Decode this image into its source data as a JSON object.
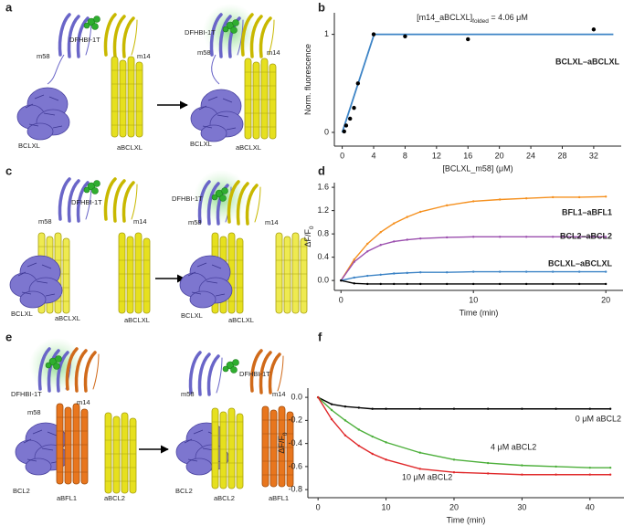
{
  "panels": [
    "a",
    "b",
    "c",
    "d",
    "e",
    "f"
  ],
  "diagrams": [
    {
      "labels": [
        "m58",
        "DFHBI-1T",
        "m14",
        "BCLXL",
        "aBCLXL",
        "DFHBI-1T",
        "m58",
        "m14",
        "BCLXL",
        "aBCLXL"
      ]
    },
    {
      "labels": [
        "m58",
        "DFHBI-1T",
        "m14",
        "BCLXL",
        "aBCLXL",
        "aBCLXL",
        "DFHBI-1T",
        "m58",
        "m14",
        "BCLXL",
        "aBCLXL"
      ]
    },
    {
      "labels": [
        "DFHBI-1T",
        "m58",
        "m14",
        "BCL2",
        "aBFL1",
        "aBCL2",
        "m58",
        "DFHBI-1T",
        "m14",
        "BCL2",
        "aBCL2",
        "aBFL1"
      ]
    }
  ],
  "chart_data": [
    {
      "type": "line",
      "annotation": {
        "text": "[m14_aBCLXL]",
        "sub": "folded",
        "rest": " = 4.06 μM"
      },
      "xlabel": "[BCLXL_m58] (μM)",
      "ylabel": "Norm. fluorescence",
      "xlim": [
        -1,
        35.5
      ],
      "ylim": [
        -0.14,
        1.22
      ],
      "xticks": [
        0,
        4,
        8,
        12,
        16,
        20,
        24,
        28,
        32
      ],
      "yticks": [
        0,
        1
      ],
      "series": [
        {
          "name": "BCLXL–aBCLXL",
          "color": "#3d84c6",
          "mode": "line",
          "x": [
            0,
            4.06,
            34.5
          ],
          "values": [
            0,
            1,
            1
          ]
        },
        {
          "color": "#000000",
          "mode": "markers",
          "x": [
            0.25,
            0.5,
            1,
            1.5,
            2,
            4,
            8,
            16,
            32
          ],
          "values": [
            0.01,
            0.07,
            0.14,
            0.25,
            0.5,
            1.0,
            0.98,
            0.95,
            1.05
          ]
        }
      ]
    },
    {
      "type": "line",
      "xlabel": "Time (min)",
      "ylabel": "ΔF/F",
      "ylabel_sub": "0",
      "xlim": [
        -0.5,
        21.3
      ],
      "ylim": [
        -0.17,
        1.68
      ],
      "xticks": [
        0,
        10,
        20
      ],
      "yticks": [
        {
          "value": 0,
          "label": "0.0"
        },
        0.4,
        0.8,
        1.2,
        1.6
      ],
      "series": [
        {
          "name": "BFL1–aBFL1",
          "color": "#f5901e",
          "mode": "lines+markers",
          "x": [
            0,
            1,
            2,
            3,
            4,
            5,
            6,
            8,
            10,
            12,
            14,
            16,
            18,
            20
          ],
          "values": [
            0,
            0.36,
            0.63,
            0.83,
            0.98,
            1.09,
            1.18,
            1.29,
            1.36,
            1.39,
            1.41,
            1.43,
            1.43,
            1.44
          ]
        },
        {
          "name": "BCL2–aBCL2",
          "color": "#9b4fae",
          "mode": "lines+markers",
          "x": [
            0,
            1,
            2,
            3,
            4,
            5,
            6,
            8,
            10,
            12,
            14,
            16,
            18,
            20
          ],
          "values": [
            0,
            0.32,
            0.5,
            0.61,
            0.67,
            0.7,
            0.72,
            0.74,
            0.75,
            0.75,
            0.75,
            0.75,
            0.75,
            0.75
          ]
        },
        {
          "name": "BCLXL–aBCLXL",
          "color": "#3d84c6",
          "mode": "lines+markers",
          "x": [
            0,
            1,
            2,
            3,
            4,
            5,
            6,
            8,
            10,
            12,
            14,
            16,
            18,
            20
          ],
          "values": [
            0,
            0.05,
            0.08,
            0.1,
            0.12,
            0.13,
            0.14,
            0.14,
            0.15,
            0.15,
            0.15,
            0.15,
            0.15,
            0.15
          ]
        },
        {
          "color": "#000000",
          "mode": "lines+markers",
          "x": [
            0,
            1,
            2,
            3,
            4,
            5,
            6,
            8,
            10,
            12,
            14,
            16,
            18,
            20
          ],
          "values": [
            0,
            -0.05,
            -0.06,
            -0.06,
            -0.06,
            -0.06,
            -0.06,
            -0.06,
            -0.06,
            -0.06,
            -0.06,
            -0.06,
            -0.06,
            -0.06
          ]
        }
      ]
    },
    {
      "type": "line",
      "xlabel": "Time (min)",
      "ylabel": "ΔF/F",
      "ylabel_sub": "0",
      "xlim": [
        -1.5,
        45
      ],
      "ylim": [
        -0.87,
        0.08
      ],
      "xticks": [
        0,
        10,
        20,
        30,
        40
      ],
      "yticks": [
        {
          "value": 0,
          "label": "0.0"
        },
        -0.2,
        -0.4,
        -0.6,
        -0.8
      ],
      "series": [
        {
          "name": "0 μM aBCL2",
          "color": "#000000",
          "mode": "lines+markers",
          "x": [
            0,
            2,
            4,
            6,
            8,
            10,
            15,
            20,
            25,
            30,
            35,
            40,
            43
          ],
          "values": [
            0,
            -0.06,
            -0.08,
            -0.09,
            -0.1,
            -0.1,
            -0.1,
            -0.1,
            -0.1,
            -0.1,
            -0.1,
            -0.1,
            -0.1
          ]
        },
        {
          "name": "4 μM aBCL2",
          "color": "#4caf3a",
          "mode": "lines+markers",
          "x": [
            0,
            2,
            4,
            6,
            8,
            10,
            15,
            20,
            25,
            30,
            35,
            40,
            43
          ],
          "values": [
            0,
            -0.11,
            -0.2,
            -0.28,
            -0.34,
            -0.39,
            -0.48,
            -0.54,
            -0.57,
            -0.59,
            -0.6,
            -0.61,
            -0.61
          ]
        },
        {
          "name": "10 μM aBCL2",
          "color": "#e0282a",
          "mode": "lines+markers",
          "x": [
            0,
            2,
            4,
            6,
            8,
            10,
            15,
            20,
            25,
            30,
            35,
            40,
            43
          ],
          "values": [
            0,
            -0.19,
            -0.33,
            -0.42,
            -0.49,
            -0.54,
            -0.62,
            -0.65,
            -0.66,
            -0.67,
            -0.67,
            -0.67,
            -0.67
          ]
        }
      ]
    }
  ]
}
